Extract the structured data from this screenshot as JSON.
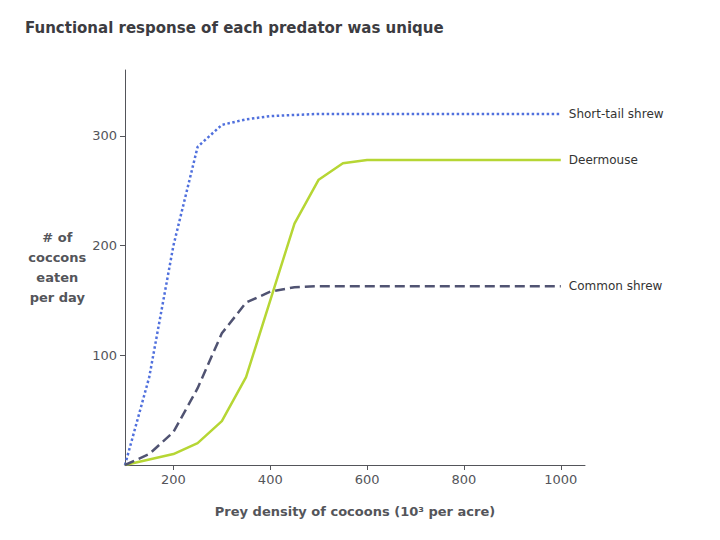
{
  "chart_data": {
    "type": "line",
    "title": "Functional response of each predator was unique",
    "xlabel": "Prey density of cocoons (10³ per acre)",
    "ylabel": "# of\ncoccons\neaten\nper day",
    "xlim": [
      100,
      1050
    ],
    "ylim": [
      0,
      360
    ],
    "xticks": [
      200,
      400,
      600,
      800,
      1000
    ],
    "yticks": [
      100,
      200,
      300
    ],
    "grid": false,
    "series": [
      {
        "name": "Short-tail shrew",
        "line_style": "dotted",
        "x": [
          100,
          150,
          200,
          250,
          300,
          350,
          400,
          500,
          600,
          700,
          800,
          900,
          1000
        ],
        "values": [
          0,
          80,
          200,
          290,
          310,
          315,
          318,
          320,
          320,
          320,
          320,
          320,
          320
        ]
      },
      {
        "name": "Deermouse",
        "line_style": "solid",
        "x": [
          100,
          150,
          200,
          250,
          300,
          350,
          400,
          450,
          500,
          550,
          600,
          700,
          800,
          900,
          1000
        ],
        "values": [
          0,
          5,
          10,
          20,
          40,
          80,
          150,
          220,
          260,
          275,
          278,
          278,
          278,
          278,
          278
        ]
      },
      {
        "name": "Common shrew",
        "line_style": "dashed",
        "x": [
          100,
          150,
          200,
          250,
          300,
          350,
          400,
          450,
          500,
          600,
          700,
          800,
          900,
          1000
        ],
        "values": [
          0,
          10,
          30,
          70,
          120,
          148,
          158,
          162,
          163,
          163,
          163,
          163,
          163,
          163
        ]
      }
    ]
  }
}
